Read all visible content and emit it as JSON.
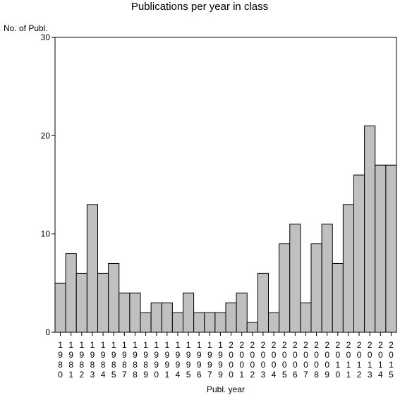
{
  "chart_data": {
    "type": "bar",
    "title": "Publications per year in class",
    "ylabel": "No. of Publ.",
    "xlabel": "Publ. year",
    "ylim": [
      0,
      30
    ],
    "yticks": [
      0,
      10,
      20,
      30
    ],
    "grid": false,
    "bar_color": "#c0c0c0",
    "categories": [
      "1980",
      "1981",
      "1982",
      "1983",
      "1984",
      "1985",
      "1987",
      "1988",
      "1989",
      "1990",
      "1991",
      "1994",
      "1995",
      "1996",
      "1997",
      "1999",
      "2000",
      "2001",
      "2002",
      "2003",
      "2004",
      "2005",
      "2006",
      "2007",
      "2008",
      "2009",
      "2010",
      "2011",
      "2012",
      "2013",
      "2014",
      "2015"
    ],
    "values": [
      5,
      8,
      6,
      13,
      6,
      7,
      4,
      4,
      2,
      3,
      3,
      2,
      4,
      2,
      2,
      2,
      3,
      4,
      1,
      6,
      2,
      9,
      11,
      3,
      9,
      11,
      7,
      13,
      16,
      21,
      17,
      17
    ]
  }
}
